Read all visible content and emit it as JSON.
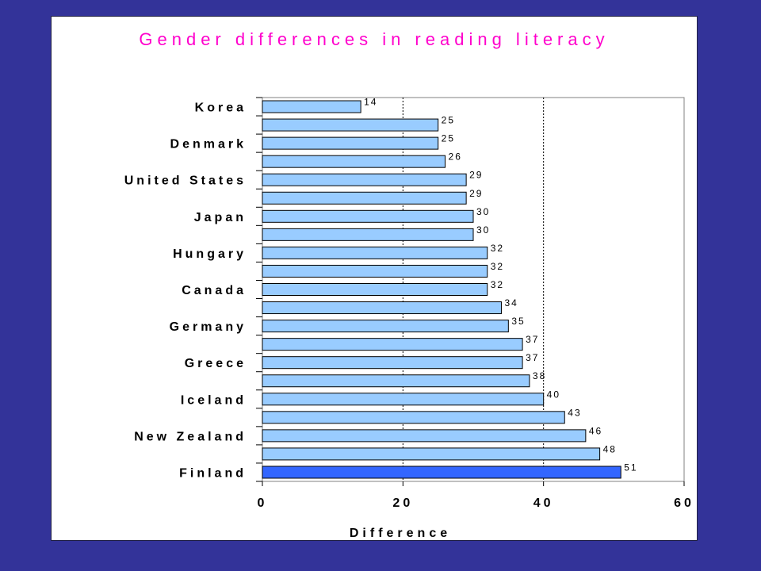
{
  "chart_data": {
    "type": "bar",
    "orientation": "horizontal",
    "title": "Gender differences in reading literacy",
    "xlabel": "Difference",
    "ylabel": "",
    "xlim": [
      0,
      60
    ],
    "xticks": [
      0,
      20,
      40,
      60
    ],
    "gridlines": [
      20,
      40
    ],
    "grid": "dashed vertical",
    "legend": "none",
    "categories": [
      "Korea",
      "",
      "Denmark",
      "",
      "United States",
      "",
      "Japan",
      "",
      "Hungary",
      "",
      "Canada",
      "",
      "Germany",
      "",
      "Greece",
      "",
      "Iceland",
      "",
      "New Zealand",
      "",
      "Finland"
    ],
    "values": [
      14,
      25,
      25,
      26,
      29,
      29,
      30,
      30,
      32,
      32,
      32,
      34,
      35,
      37,
      37,
      38,
      40,
      43,
      46,
      48,
      51
    ],
    "highlight_index": 20
  },
  "colors": {
    "background": "#333399",
    "panel": "#ffffff",
    "title": "#ff00cc",
    "bar": "#99ccff",
    "bar_highlight": "#3366ff",
    "bar_stroke": "#000000",
    "text": "#000000"
  }
}
